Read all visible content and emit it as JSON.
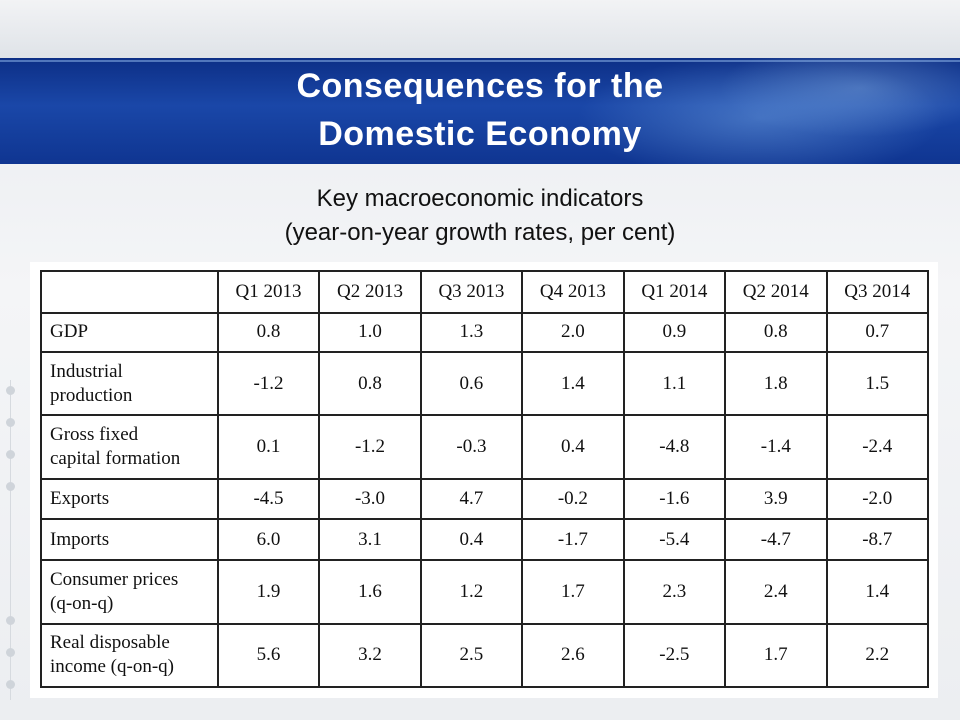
{
  "slide": {
    "title_line1": "Consequences for the",
    "title_line2": "Domestic Economy",
    "subtitle_line1": "Key macroeconomic indicators",
    "subtitle_line2": "(year-on-year growth rates, per cent)"
  },
  "table": {
    "columns": [
      "Q1 2013",
      "Q2 2013",
      "Q3 2013",
      "Q4 2013",
      "Q1 2014",
      "Q2 2014",
      "Q3 2014"
    ],
    "rows": [
      {
        "label_line1": "GDP",
        "label_line2": "",
        "values": [
          "0.8",
          "1.0",
          "1.3",
          "2.0",
          "0.9",
          "0.8",
          "0.7"
        ]
      },
      {
        "label_line1": "Industrial",
        "label_line2": "production",
        "values": [
          "-1.2",
          "0.8",
          "0.6",
          "1.4",
          "1.1",
          "1.8",
          "1.5"
        ]
      },
      {
        "label_line1": "Gross fixed",
        "label_line2": "capital formation",
        "values": [
          "0.1",
          "-1.2",
          "-0.3",
          "0.4",
          "-4.8",
          "-1.4",
          "-2.4"
        ]
      },
      {
        "label_line1": "Exports",
        "label_line2": "",
        "values": [
          "-4.5",
          "-3.0",
          "4.7",
          "-0.2",
          "-1.6",
          "3.9",
          "-2.0"
        ]
      },
      {
        "label_line1": "Imports",
        "label_line2": "",
        "values": [
          "6.0",
          "3.1",
          "0.4",
          "-1.7",
          "-5.4",
          "-4.7",
          "-8.7"
        ]
      },
      {
        "label_line1": "Consumer prices",
        "label_line2": "(q-on-q)",
        "values": [
          "1.9",
          "1.6",
          "1.2",
          "1.7",
          "2.3",
          "2.4",
          "1.4"
        ]
      },
      {
        "label_line1": "Real disposable",
        "label_line2": "income (q-on-q)",
        "values": [
          "5.6",
          "3.2",
          "2.5",
          "2.6",
          "-2.5",
          "1.7",
          "2.2"
        ]
      }
    ]
  },
  "colors": {
    "banner": "#1a47a8",
    "title_text": "#ffffff",
    "table_border": "#222222"
  }
}
